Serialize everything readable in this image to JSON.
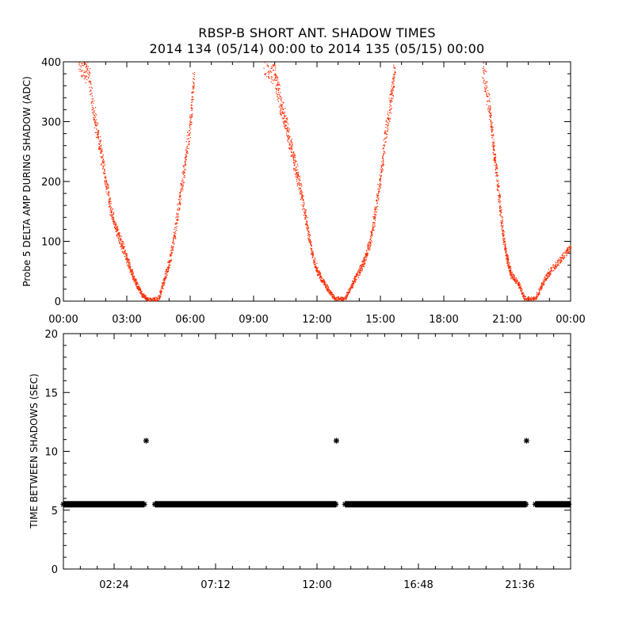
{
  "chart_data": [
    {
      "type": "scatter",
      "title": "RBSP-B SHORT ANT. SHADOW TIMES",
      "subtitle": "2014 134 (05/14) 00:00 to 2014 135 (05/15) 00:00",
      "ylabel": "Probe 5 DELTA AMP DURING SHADOW (ADC)",
      "xlabel": "",
      "xlim": [
        "00:00",
        "24:00"
      ],
      "ylim": [
        0,
        400
      ],
      "x_ticks": [
        "00:00",
        "03:00",
        "06:00",
        "09:00",
        "12:00",
        "15:00",
        "18:00",
        "21:00",
        "00:00"
      ],
      "y_ticks": [
        "0",
        "100",
        "200",
        "300",
        "400"
      ],
      "grid": false,
      "point_color": "#ff2a00",
      "series": [
        {
          "values": [
            {
              "x": "00:45",
              "y": 400
            },
            {
              "x": "01:10",
              "y": 380
            },
            {
              "x": "01:30",
              "y": 300
            },
            {
              "x": "01:45",
              "y": 250
            },
            {
              "x": "02:00",
              "y": 200
            },
            {
              "x": "02:15",
              "y": 150
            },
            {
              "x": "02:30",
              "y": 120
            },
            {
              "x": "02:45",
              "y": 95
            },
            {
              "x": "03:00",
              "y": 70
            },
            {
              "x": "03:15",
              "y": 45
            },
            {
              "x": "03:30",
              "y": 25
            },
            {
              "x": "03:45",
              "y": 10
            },
            {
              "x": "04:00",
              "y": 3
            },
            {
              "x": "04:30",
              "y": 5
            },
            {
              "x": "04:45",
              "y": 35
            },
            {
              "x": "05:00",
              "y": 65
            },
            {
              "x": "05:15",
              "y": 110
            },
            {
              "x": "05:30",
              "y": 175
            },
            {
              "x": "05:45",
              "y": 230
            },
            {
              "x": "06:00",
              "y": 300
            },
            {
              "x": "06:10",
              "y": 380
            },
            {
              "x": "09:30",
              "y": 400
            },
            {
              "x": "10:00",
              "y": 380
            },
            {
              "x": "10:15",
              "y": 330
            },
            {
              "x": "10:30",
              "y": 300
            },
            {
              "x": "10:45",
              "y": 260
            },
            {
              "x": "11:00",
              "y": 220
            },
            {
              "x": "11:15",
              "y": 180
            },
            {
              "x": "11:30",
              "y": 130
            },
            {
              "x": "11:45",
              "y": 80
            },
            {
              "x": "12:00",
              "y": 50
            },
            {
              "x": "12:15",
              "y": 35
            },
            {
              "x": "12:30",
              "y": 20
            },
            {
              "x": "12:50",
              "y": 5
            },
            {
              "x": "13:20",
              "y": 5
            },
            {
              "x": "13:40",
              "y": 30
            },
            {
              "x": "14:00",
              "y": 50
            },
            {
              "x": "14:15",
              "y": 70
            },
            {
              "x": "14:30",
              "y": 100
            },
            {
              "x": "14:45",
              "y": 150
            },
            {
              "x": "15:00",
              "y": 210
            },
            {
              "x": "15:15",
              "y": 280
            },
            {
              "x": "15:30",
              "y": 340
            },
            {
              "x": "15:40",
              "y": 390
            },
            {
              "x": "19:50",
              "y": 390
            },
            {
              "x": "20:10",
              "y": 320
            },
            {
              "x": "20:20",
              "y": 260
            },
            {
              "x": "20:30",
              "y": 210
            },
            {
              "x": "20:40",
              "y": 150
            },
            {
              "x": "20:50",
              "y": 100
            },
            {
              "x": "21:00",
              "y": 70
            },
            {
              "x": "21:10",
              "y": 45
            },
            {
              "x": "21:30",
              "y": 30
            },
            {
              "x": "21:50",
              "y": 5
            },
            {
              "x": "22:20",
              "y": 5
            },
            {
              "x": "22:40",
              "y": 30
            },
            {
              "x": "23:00",
              "y": 50
            },
            {
              "x": "23:30",
              "y": 70
            },
            {
              "x": "24:00",
              "y": 90
            }
          ]
        }
      ]
    },
    {
      "type": "scatter",
      "title": "",
      "ylabel": "TIME BETWEEN SHADOWS (SEC)",
      "xlabel": "",
      "xlim": [
        "00:00",
        "24:00"
      ],
      "ylim": [
        0,
        20
      ],
      "x_ticks": [
        "02:24",
        "07:12",
        "12:00",
        "16:48",
        "21:36"
      ],
      "y_ticks": [
        "0",
        "5",
        "10",
        "15",
        "20"
      ],
      "grid": false,
      "marker": "asterisk",
      "point_color": "#000000",
      "series": [
        {
          "segments": [
            {
              "x_start": "00:00",
              "x_end": "03:50",
              "y": 5.5
            },
            {
              "x_start": "04:20",
              "y": 5.5,
              "x_end": "12:55"
            },
            {
              "x_start": "13:20",
              "x_end": "21:55",
              "y": 5.5
            },
            {
              "x_start": "22:20",
              "x_end": "24:00",
              "y": 5.5
            }
          ],
          "outliers": [
            {
              "x": "03:55",
              "y": 10.9
            },
            {
              "x": "12:55",
              "y": 10.9
            },
            {
              "x": "21:55",
              "y": 10.9
            }
          ]
        }
      ]
    }
  ]
}
